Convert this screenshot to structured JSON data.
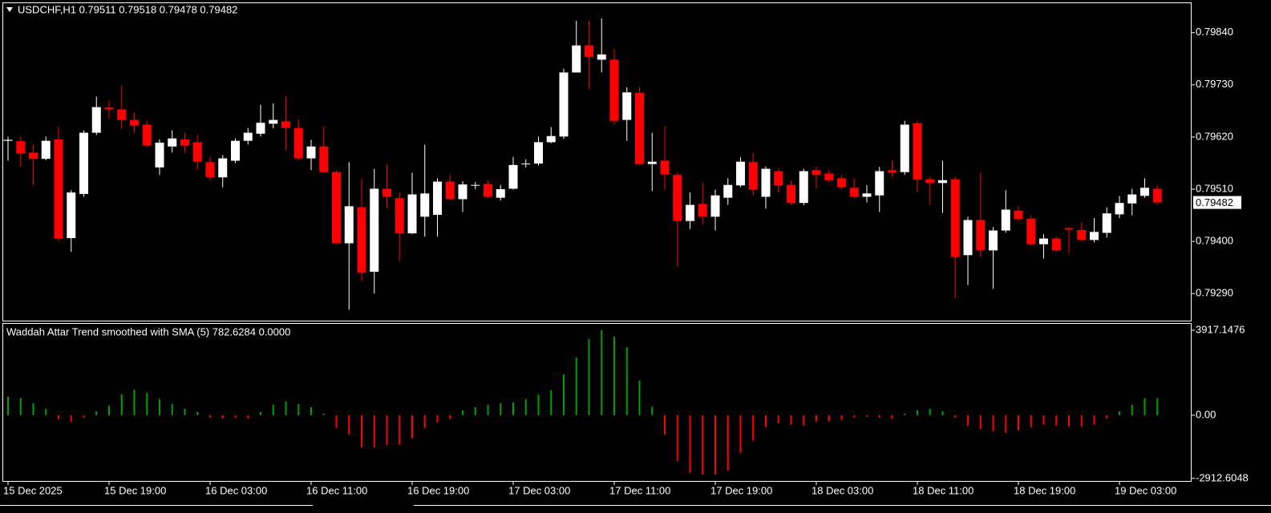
{
  "chart_data": [
    {
      "type": "candlestick",
      "title": "USDCHF,H1  0.79511 0.79518 0.79478 0.79482",
      "categories": [
        "15 Dec 2025",
        null,
        null,
        null,
        null,
        null,
        null,
        null,
        "15 Dec 19:00",
        null,
        null,
        null,
        null,
        null,
        null,
        null,
        "16 Dec 03:00",
        null,
        null,
        null,
        null,
        null,
        null,
        null,
        "16 Dec 11:00",
        null,
        null,
        null,
        null,
        null,
        null,
        null,
        "16 Dec 19:00",
        null,
        null,
        null,
        null,
        null,
        null,
        null,
        "17 Dec 03:00",
        null,
        null,
        null,
        null,
        null,
        null,
        null,
        "17 Dec 11:00",
        null,
        null,
        null,
        null,
        null,
        null,
        null,
        "17 Dec 19:00",
        null,
        null,
        null,
        null,
        null,
        null,
        null,
        "18 Dec 03:00",
        null,
        null,
        null,
        null,
        null,
        null,
        null,
        "18 Dec 11:00",
        null,
        null,
        null,
        null,
        null,
        null,
        null,
        "18 Dec 19:00",
        null,
        null,
        null,
        null,
        null,
        null,
        null,
        "19 Dec 03:00",
        null,
        null,
        null
      ],
      "open": [
        0.79612,
        0.79611,
        0.79587,
        0.79574,
        0.79615,
        0.79407,
        0.795,
        0.79629,
        0.79682,
        0.79678,
        0.79656,
        0.79646,
        0.79556,
        0.796,
        0.79615,
        0.79609,
        0.79567,
        0.79535,
        0.7957,
        0.79612,
        0.79627,
        0.79648,
        0.79653,
        0.79639,
        0.79575,
        0.796,
        0.79546,
        0.79396,
        0.79472,
        0.79336,
        0.79511,
        0.79491,
        0.79417,
        0.79452,
        0.79456,
        0.79526,
        0.79489,
        0.79518,
        0.79521,
        0.79492,
        0.79511,
        0.79563,
        0.79564,
        0.79609,
        0.79621,
        0.79756,
        0.79813,
        0.79783,
        0.79783,
        0.79656,
        0.79713,
        0.79563,
        0.7957,
        0.7954,
        0.79443,
        0.79479,
        0.79452,
        0.79492,
        0.79518,
        0.79567,
        0.79494,
        0.79548,
        0.79519,
        0.79481,
        0.7955,
        0.79543,
        0.79533,
        0.79513,
        0.79494,
        0.79497,
        0.7955,
        0.79546,
        0.79649,
        0.79531,
        0.79523,
        0.79531,
        0.79371,
        0.79445,
        0.79381,
        0.79423,
        0.79465,
        0.79448,
        0.79394,
        0.79406,
        0.79428,
        0.79424,
        0.79403,
        0.79418,
        0.79457,
        0.7948,
        0.79496,
        0.79511
      ],
      "high": [
        0.7962,
        0.79621,
        0.79604,
        0.79621,
        0.79641,
        0.79508,
        0.79634,
        0.79705,
        0.79697,
        0.79729,
        0.79671,
        0.79654,
        0.79615,
        0.79634,
        0.79629,
        0.79624,
        0.79579,
        0.79582,
        0.79617,
        0.79639,
        0.79688,
        0.79691,
        0.79705,
        0.79657,
        0.79614,
        0.79643,
        0.7955,
        0.79567,
        0.79533,
        0.79553,
        0.79562,
        0.79503,
        0.79545,
        0.79604,
        0.79533,
        0.7954,
        0.79527,
        0.79525,
        0.79528,
        0.79519,
        0.79578,
        0.79573,
        0.79621,
        0.79641,
        0.79764,
        0.79865,
        0.79865,
        0.7987,
        0.79806,
        0.79725,
        0.79725,
        0.79629,
        0.79643,
        0.79545,
        0.79503,
        0.79523,
        0.79509,
        0.79533,
        0.79577,
        0.79587,
        0.79558,
        0.79553,
        0.79528,
        0.79553,
        0.79557,
        0.7955,
        0.7954,
        0.79533,
        0.79519,
        0.79557,
        0.7957,
        0.79654,
        0.79654,
        0.79536,
        0.7957,
        0.79536,
        0.79452,
        0.79545,
        0.7943,
        0.79508,
        0.79474,
        0.79455,
        0.79415,
        0.79411,
        0.79429,
        0.7944,
        0.79449,
        0.79472,
        0.79496,
        0.79511,
        0.79533,
        0.79518
      ],
      "low": [
        0.7957,
        0.79558,
        0.7952,
        0.79571,
        0.79401,
        0.79378,
        0.79494,
        0.79624,
        0.79658,
        0.79637,
        0.79629,
        0.79599,
        0.7954,
        0.79587,
        0.79587,
        0.7955,
        0.79528,
        0.79514,
        0.79565,
        0.79604,
        0.79621,
        0.79638,
        0.79592,
        0.7957,
        0.7955,
        0.79545,
        0.79393,
        0.79256,
        0.79317,
        0.7929,
        0.79469,
        0.79359,
        0.79415,
        0.7941,
        0.7941,
        0.79486,
        0.79462,
        0.7951,
        0.79491,
        0.79486,
        0.79509,
        0.79556,
        0.7956,
        0.79607,
        0.79616,
        0.79756,
        0.79722,
        0.79756,
        0.79646,
        0.79612,
        0.79562,
        0.79506,
        0.79509,
        0.79347,
        0.79426,
        0.79435,
        0.79423,
        0.79477,
        0.79514,
        0.79497,
        0.79469,
        0.79503,
        0.79477,
        0.79476,
        0.79511,
        0.79523,
        0.79509,
        0.79489,
        0.79482,
        0.79462,
        0.79536,
        0.7954,
        0.79503,
        0.79477,
        0.7946,
        0.7928,
        0.79308,
        0.79367,
        0.793,
        0.79418,
        0.79442,
        0.79391,
        0.79364,
        0.79378,
        0.79374,
        0.794,
        0.79398,
        0.79408,
        0.79449,
        0.79455,
        0.79492,
        0.79478
      ],
      "close": [
        0.79614,
        0.79585,
        0.79574,
        0.79612,
        0.79406,
        0.79503,
        0.79629,
        0.79683,
        0.79678,
        0.79656,
        0.79644,
        0.79602,
        0.79608,
        0.79617,
        0.79602,
        0.79568,
        0.79535,
        0.79575,
        0.79612,
        0.79629,
        0.7965,
        0.79656,
        0.79639,
        0.79575,
        0.796,
        0.79546,
        0.79396,
        0.79474,
        0.79334,
        0.79511,
        0.79494,
        0.79417,
        0.79499,
        0.79501,
        0.79526,
        0.79489,
        0.7952,
        0.79519,
        0.79494,
        0.7951,
        0.79561,
        0.79564,
        0.79609,
        0.79622,
        0.79756,
        0.79813,
        0.79789,
        0.79794,
        0.79654,
        0.79714,
        0.79563,
        0.79568,
        0.79541,
        0.79443,
        0.79477,
        0.79452,
        0.79497,
        0.79519,
        0.79568,
        0.79509,
        0.79553,
        0.79518,
        0.79481,
        0.79548,
        0.7954,
        0.79529,
        0.79514,
        0.79494,
        0.79501,
        0.79548,
        0.79545,
        0.79646,
        0.7953,
        0.79523,
        0.79529,
        0.79367,
        0.79445,
        0.79381,
        0.79423,
        0.79467,
        0.79447,
        0.79394,
        0.79406,
        0.79381,
        0.79425,
        0.79403,
        0.7942,
        0.79459,
        0.79481,
        0.79499,
        0.79513,
        0.79482
      ],
      "up_color": "#ffffff",
      "down_color": "#ff0000",
      "ylim": [
        0.79233,
        0.79902
      ],
      "yticks": [
        {
          "value": 0.7984,
          "label": "0.79840"
        },
        {
          "value": 0.7973,
          "label": "0.79730"
        },
        {
          "value": 0.7962,
          "label": "0.79620"
        },
        {
          "value": 0.7951,
          "label": "0.79510"
        },
        {
          "value": 0.794,
          "label": "0.79400"
        },
        {
          "value": 0.7929,
          "label": "0.79290"
        }
      ],
      "price_label": {
        "value": 0.79482,
        "label": "0.79482"
      }
    },
    {
      "type": "bar",
      "title": "Waddah Attar Trend smoothed with SMA (5) 782.6284 0.0000",
      "values": [
        850,
        780,
        550,
        300,
        -180,
        -300,
        -110,
        180,
        440,
        960,
        1180,
        1030,
        740,
        520,
        300,
        150,
        -110,
        -150,
        -110,
        -150,
        150,
        480,
        630,
        520,
        370,
        70,
        -590,
        -890,
        -1480,
        -1480,
        -1370,
        -1370,
        -1070,
        -590,
        -330,
        -180,
        220,
        370,
        480,
        550,
        590,
        740,
        960,
        1150,
        1880,
        2660,
        3510,
        3917,
        3620,
        3140,
        1590,
        400,
        -890,
        -2110,
        -2660,
        -2730,
        -2730,
        -2550,
        -1740,
        -1180,
        -550,
        -370,
        -440,
        -480,
        -300,
        -300,
        -220,
        -110,
        -70,
        -110,
        -180,
        70,
        220,
        300,
        180,
        -110,
        -480,
        -630,
        -740,
        -810,
        -700,
        -550,
        -440,
        -480,
        -520,
        -520,
        -440,
        -150,
        180,
        480,
        780,
        782.6284
      ],
      "positive_color": "#00a000",
      "negative_color": "#ff0000",
      "ylim": [
        -3030,
        4213
      ],
      "yticks": [
        3917.1476,
        {
          "value": 0,
          "label": "0.00"
        },
        -2912.6048
      ]
    }
  ]
}
